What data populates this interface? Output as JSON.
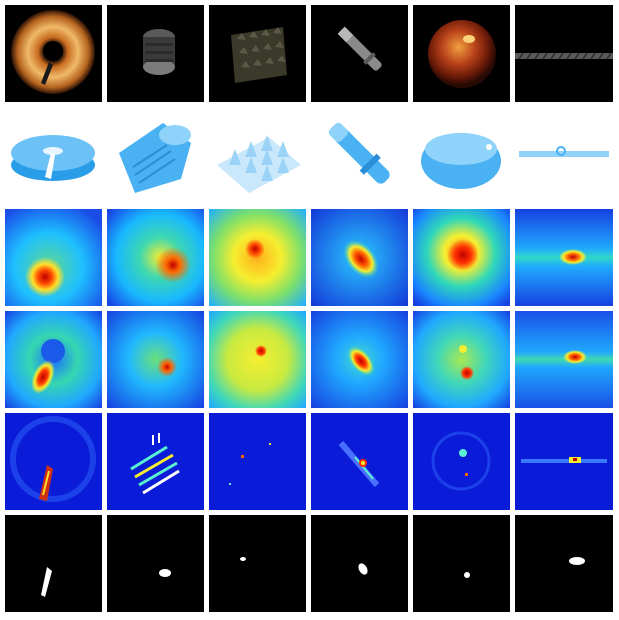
{
  "figure": {
    "rows": [
      {
        "name": "rgb-row",
        "cells": [
          "donut",
          "cylinder",
          "foam",
          "dowel",
          "tomato",
          "rope"
        ]
      },
      {
        "name": "point-cloud-row",
        "cells": [
          "donut",
          "cylinder",
          "foam",
          "dowel",
          "tomato",
          "rope"
        ]
      },
      {
        "name": "heatmap-row-a",
        "cells": [
          "donut",
          "cylinder",
          "foam",
          "dowel",
          "tomato",
          "rope"
        ]
      },
      {
        "name": "heatmap-row-b",
        "cells": [
          "donut",
          "cylinder",
          "foam",
          "dowel",
          "tomato",
          "rope"
        ]
      },
      {
        "name": "error-map-row",
        "cells": [
          "donut",
          "cylinder",
          "foam",
          "dowel",
          "tomato",
          "rope"
        ]
      },
      {
        "name": "mask-row",
        "cells": [
          "donut",
          "cylinder",
          "foam",
          "dowel",
          "tomato",
          "rope"
        ]
      }
    ]
  },
  "colors": {
    "black": "#000000",
    "white": "#ffffff",
    "jet_blue": "#0a1cd8",
    "jet_cyan": "#17c7ff",
    "jet_yellow": "#f8f22c",
    "jet_red": "#c00000",
    "pc_blue": "#3aa8f2"
  }
}
